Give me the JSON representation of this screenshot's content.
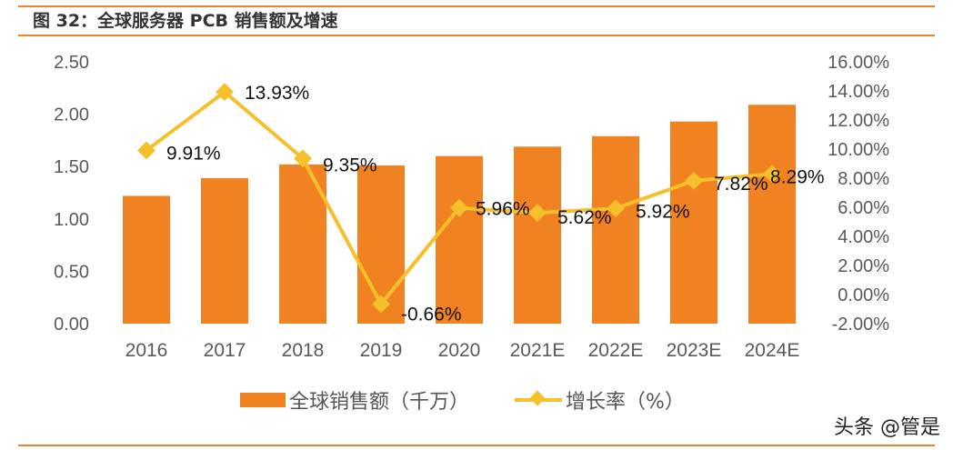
{
  "title": "图 32：全球服务器 PCB 销售额及增速",
  "watermark": "头条 @管是",
  "chart_data": {
    "type": "bar+line",
    "categories": [
      "2016",
      "2017",
      "2018",
      "2019",
      "2020",
      "2021E",
      "2022E",
      "2023E",
      "2024E"
    ],
    "series": [
      {
        "name": "全球销售额（千万）",
        "type": "bar",
        "axis": "left",
        "color": "#F08221",
        "values": [
          1.22,
          1.39,
          1.52,
          1.51,
          1.6,
          1.69,
          1.79,
          1.93,
          2.09
        ]
      },
      {
        "name": "增长率（%）",
        "type": "line",
        "axis": "right",
        "color": "#F6C02B",
        "values": [
          9.91,
          13.93,
          9.35,
          -0.66,
          5.96,
          5.62,
          5.92,
          7.82,
          8.29
        ],
        "labels": [
          "9.91%",
          "13.93%",
          "9.35%",
          "-0.66%",
          "5.96%",
          "5.62%",
          "5.92%",
          "7.82%",
          "8.29%"
        ]
      }
    ],
    "left_axis": {
      "range": [
        0,
        2.5
      ],
      "ticks": [
        "0.00",
        "0.50",
        "1.00",
        "1.50",
        "2.00",
        "2.50"
      ]
    },
    "right_axis": {
      "range": [
        -2,
        16
      ],
      "ticks": [
        "-2.00%",
        "0.00%",
        "2.00%",
        "4.00%",
        "6.00%",
        "8.00%",
        "10.00%",
        "12.00%",
        "14.00%",
        "16.00%"
      ]
    },
    "grid": false,
    "legend": "bottom"
  }
}
